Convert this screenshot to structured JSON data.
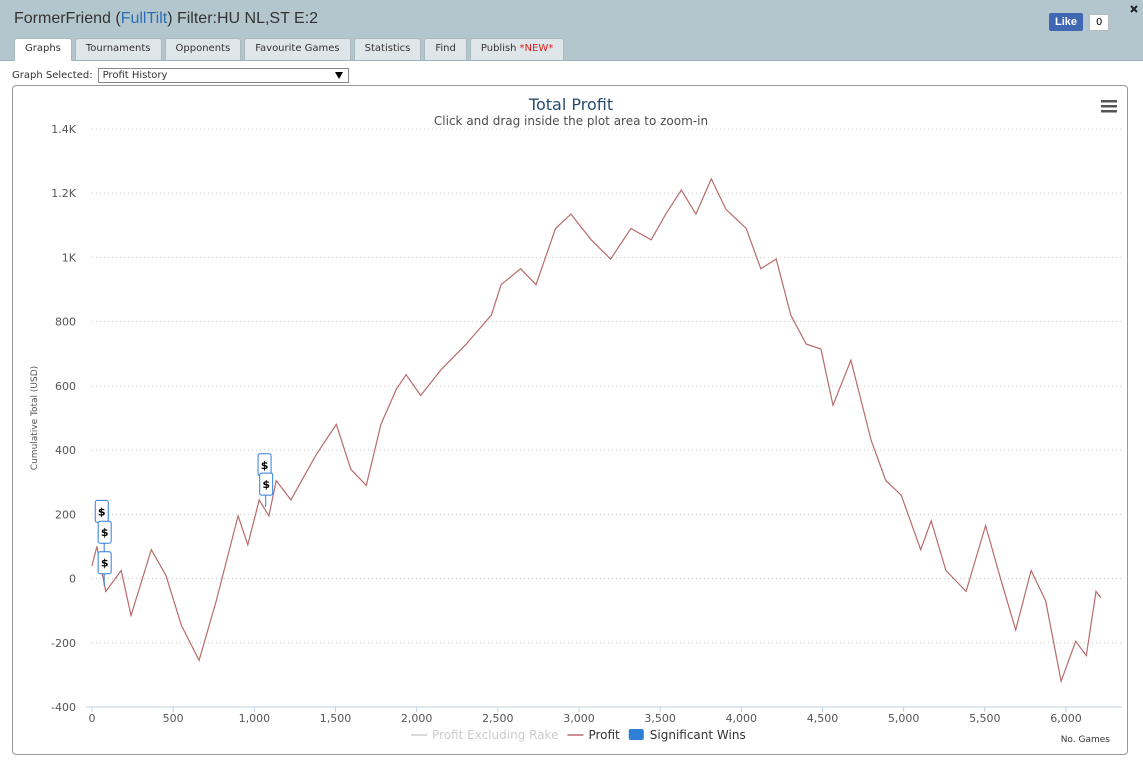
{
  "header": {
    "title_before": "FormerFriend (",
    "site": "FullTilt",
    "title_after": ") Filter:HU NL,ST E:2",
    "like": "Like",
    "like_count": "0"
  },
  "tabs": [
    "Graphs",
    "Tournaments",
    "Opponents",
    "Favourite Games",
    "Statistics",
    "Find",
    "Publish"
  ],
  "new_badge": "*NEW*",
  "graph_selector": {
    "label": "Graph Selected:",
    "value": "Profit History"
  },
  "chart_data": {
    "type": "line",
    "title": "Total Profit",
    "subtitle": "Click and drag inside the plot area to zoom-in",
    "y_label": "Cumulative Total (USD)",
    "x_label": "No. Games",
    "xlim": [
      0,
      6270
    ],
    "ylim": [
      -400,
      1400
    ],
    "xticks": [
      0,
      500,
      {
        "value": 1000,
        "label": "1,000"
      },
      {
        "value": 1500,
        "label": "1,500"
      },
      {
        "value": 2000,
        "label": "2,000"
      },
      {
        "value": 2500,
        "label": "2,500"
      },
      {
        "value": 3000,
        "label": "3,000"
      },
      {
        "value": 3500,
        "label": "3,500"
      },
      {
        "value": 4000,
        "label": "4,000"
      },
      {
        "value": 4500,
        "label": "4,500"
      },
      {
        "value": 5000,
        "label": "5,000"
      },
      {
        "value": 5500,
        "label": "5,500"
      },
      {
        "value": 6000,
        "label": "6,000"
      }
    ],
    "yticks": [
      -400,
      -200,
      0,
      200,
      400,
      600,
      800,
      {
        "value": 1000,
        "label": "1K"
      },
      {
        "value": 1200,
        "label": "1.2K"
      },
      {
        "value": 1400,
        "label": "1.4K"
      }
    ],
    "grid": true,
    "series": [
      {
        "name": "Profit Excluding Rake",
        "color": "#cccccc",
        "visible": false
      },
      {
        "name": "Profit",
        "color": "#b86b6b",
        "x": [
          0,
          30,
          85,
          180,
          240,
          365,
          455,
          550,
          660,
          765,
          900,
          960,
          1030,
          1090,
          1135,
          1225,
          1380,
          1505,
          1595,
          1690,
          1780,
          1875,
          1935,
          2025,
          2150,
          2305,
          2460,
          2520,
          2640,
          2735,
          2855,
          2950,
          3075,
          3195,
          3320,
          3445,
          3535,
          3630,
          3720,
          3815,
          3905,
          4030,
          4120,
          4215,
          4305,
          4400,
          4490,
          4565,
          4675,
          4800,
          4890,
          4985,
          5105,
          5170,
          5260,
          5385,
          5505,
          5600,
          5690,
          5785,
          5875,
          5970,
          6060,
          6125,
          6185,
          6215
        ],
        "values": [
          40,
          100,
          -40,
          25,
          -115,
          90,
          10,
          -145,
          -255,
          -70,
          195,
          105,
          245,
          195,
          305,
          245,
          385,
          480,
          340,
          290,
          480,
          590,
          635,
          570,
          650,
          730,
          820,
          915,
          965,
          915,
          1090,
          1135,
          1055,
          995,
          1090,
          1055,
          1135,
          1210,
          1135,
          1245,
          1150,
          1090,
          965,
          995,
          820,
          730,
          715,
          540,
          680,
          430,
          305,
          260,
          90,
          180,
          25,
          -40,
          165,
          -5,
          -160,
          25,
          -70,
          -320,
          -195,
          -240,
          -40,
          -60
        ]
      },
      {
        "name": "Significant Wins",
        "color": "#2f7ed8",
        "flag_text": "$",
        "x": [
          57,
          75,
          75,
          1060,
          1070
        ],
        "values": [
          175,
          110,
          15,
          320,
          260
        ]
      }
    ]
  }
}
